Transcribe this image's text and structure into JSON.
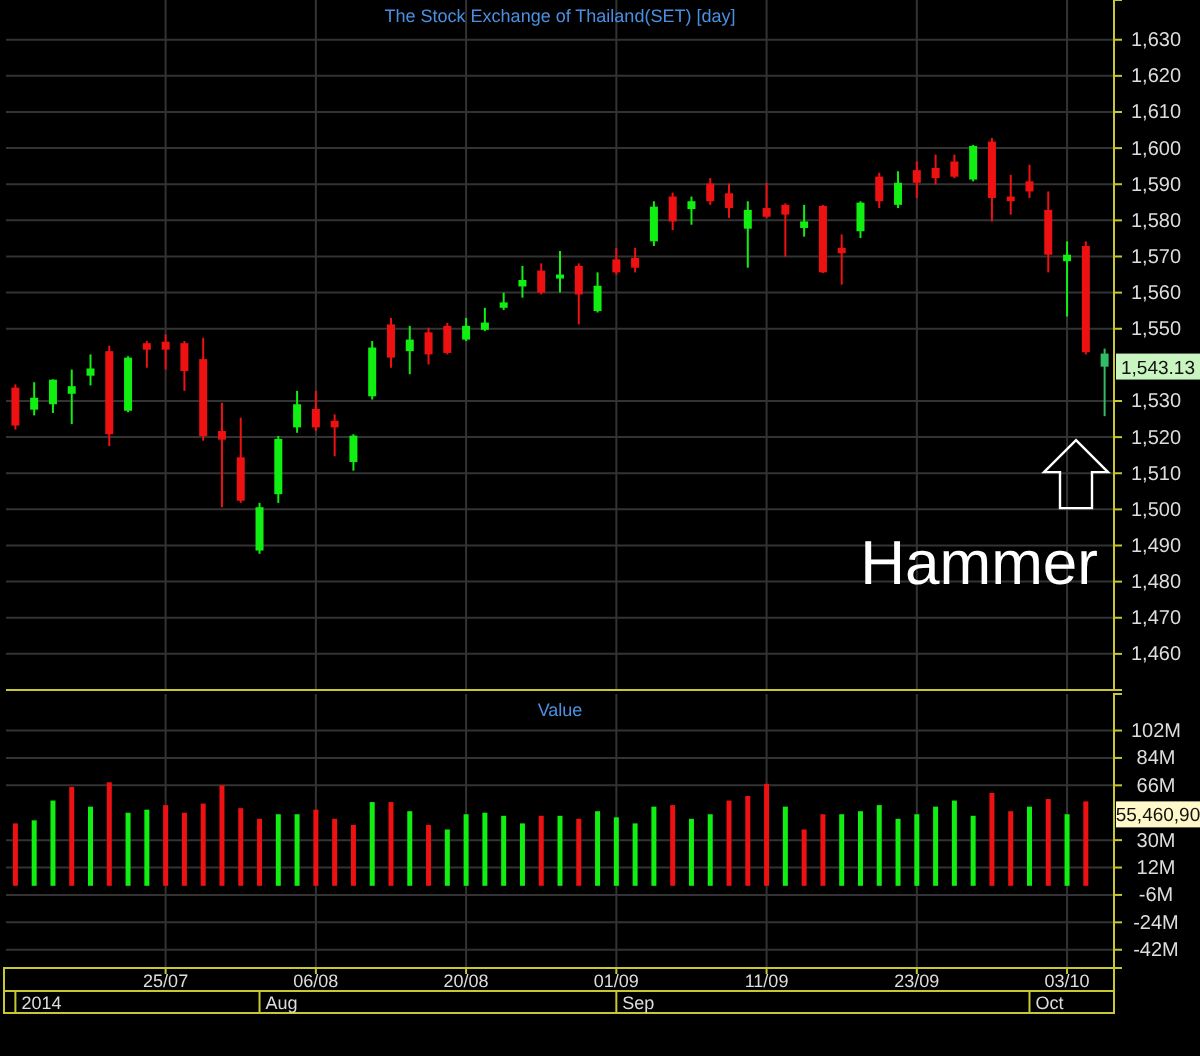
{
  "chart_data": [
    {
      "type": "candlestick",
      "title": "The Stock Exchange of Thailand(SET) [day]",
      "categories": [
        null,
        null,
        null,
        null,
        null,
        null,
        null,
        null,
        null,
        null,
        null,
        null,
        null,
        null,
        null,
        null,
        null,
        null,
        null,
        null,
        null,
        null,
        null,
        null,
        null,
        null,
        null,
        null,
        null,
        null,
        null,
        null,
        null,
        null,
        null,
        null,
        null,
        null,
        null,
        null,
        null,
        null,
        null,
        null,
        null,
        null,
        null,
        null,
        null,
        null,
        null,
        null,
        null,
        null,
        null,
        null,
        null,
        null,
        null
      ],
      "ohlc": [
        [
          1533.7,
          1534.6,
          1522.1,
          1523.2
        ],
        [
          1527.6,
          1535.2,
          1526.0,
          1530.9
        ],
        [
          1529.1,
          1536.0,
          1526.7,
          1535.9
        ],
        [
          1532.0,
          1538.7,
          1523.6,
          1534.1
        ],
        [
          1537.0,
          1542.9,
          1534.3,
          1539.0
        ],
        [
          1543.8,
          1545.3,
          1517.5,
          1520.8
        ],
        [
          1527.3,
          1542.4,
          1526.9,
          1542.0
        ],
        [
          1546.0,
          1546.6,
          1539.2,
          1544.2
        ],
        [
          1546.4,
          1548.4,
          1538.7,
          1544.2
        ],
        [
          1546.0,
          1546.6,
          1532.8,
          1538.3
        ],
        [
          1541.6,
          1547.5,
          1519.0,
          1520.3
        ],
        [
          1521.7,
          1529.5,
          1500.6,
          1519.3
        ],
        [
          1514.4,
          1525.4,
          1501.8,
          1502.4
        ],
        [
          1488.6,
          1501.8,
          1487.7,
          1500.6
        ],
        [
          1504.2,
          1520.3,
          1501.8,
          1519.5
        ],
        [
          1522.7,
          1532.8,
          1521.2,
          1529.1
        ],
        [
          1527.8,
          1532.8,
          1521.7,
          1522.7
        ],
        [
          1524.5,
          1526.3,
          1514.7,
          1522.7
        ],
        [
          1513.1,
          1520.8,
          1510.7,
          1520.4
        ],
        [
          1531.3,
          1546.6,
          1530.4,
          1544.8
        ],
        [
          1551.2,
          1553.0,
          1539.2,
          1542.0
        ],
        [
          1543.8,
          1550.8,
          1537.4,
          1547.0
        ],
        [
          1549.0,
          1550.3,
          1540.1,
          1542.9
        ],
        [
          1550.8,
          1551.6,
          1542.9,
          1543.3
        ],
        [
          1547.0,
          1553.0,
          1546.6,
          1550.8
        ],
        [
          1549.7,
          1555.8,
          1549.4,
          1551.7
        ],
        [
          1555.8,
          1560.0,
          1555.2,
          1557.3
        ],
        [
          1561.7,
          1567.4,
          1558.6,
          1563.5
        ],
        [
          1566.1,
          1568.1,
          1559.5,
          1560.0
        ],
        [
          1563.9,
          1571.5,
          1560.0,
          1565.0
        ],
        [
          1567.4,
          1568.1,
          1551.2,
          1559.5
        ],
        [
          1554.9,
          1565.6,
          1554.5,
          1561.9
        ],
        [
          1569.2,
          1572.4,
          1565.0,
          1565.6
        ],
        [
          1569.6,
          1572.4,
          1565.6,
          1566.9
        ],
        [
          1574.2,
          1585.3,
          1572.9,
          1583.8
        ],
        [
          1586.6,
          1587.7,
          1577.3,
          1579.7
        ],
        [
          1583.1,
          1586.6,
          1578.8,
          1585.3
        ],
        [
          1590.2,
          1591.7,
          1584.3,
          1585.3
        ],
        [
          1587.5,
          1590.2,
          1580.7,
          1583.4
        ],
        [
          1577.7,
          1585.3,
          1566.9,
          1582.9
        ],
        [
          1583.4,
          1590.4,
          1580.7,
          1581.0
        ],
        [
          1584.3,
          1584.7,
          1570.0,
          1581.6
        ],
        [
          1577.9,
          1584.3,
          1575.5,
          1579.7
        ],
        [
          1584.0,
          1584.3,
          1565.4,
          1565.6
        ],
        [
          1572.4,
          1576.1,
          1562.2,
          1570.9
        ],
        [
          1577.0,
          1585.3,
          1575.1,
          1584.9
        ],
        [
          1592.1,
          1593.2,
          1583.4,
          1585.3
        ],
        [
          1584.3,
          1593.6,
          1583.4,
          1590.4
        ],
        [
          1593.9,
          1596.3,
          1586.2,
          1590.4
        ],
        [
          1594.5,
          1598.2,
          1589.9,
          1591.7
        ],
        [
          1596.3,
          1598.2,
          1591.7,
          1592.1
        ],
        [
          1591.3,
          1600.9,
          1590.8,
          1600.6
        ],
        [
          1601.8,
          1602.8,
          1579.7,
          1586.2
        ],
        [
          1586.6,
          1592.6,
          1581.6,
          1585.3
        ],
        [
          1590.8,
          1595.4,
          1586.2,
          1588.0
        ],
        [
          1582.9,
          1588.0,
          1565.6,
          1570.5
        ],
        [
          1568.7,
          1574.2,
          1553.4,
          1570.5
        ],
        [
          1572.9,
          1574.2,
          1542.9,
          1543.5
        ],
        [
          1539.5,
          1544.5,
          1525.8,
          1543.13
        ]
      ],
      "colors": [
        "#ee1111",
        "#11ee11",
        "#11ee11",
        "#11ee11",
        "#11ee11",
        "#ee1111",
        "#11ee11",
        "#ee1111",
        "#ee1111",
        "#ee1111",
        "#ee1111",
        "#ee1111",
        "#ee1111",
        "#11ee11",
        "#11ee11",
        "#11ee11",
        "#ee1111",
        "#ee1111",
        "#11ee11",
        "#11ee11",
        "#ee1111",
        "#11ee11",
        "#ee1111",
        "#ee1111",
        "#11ee11",
        "#11ee11",
        "#11ee11",
        "#11ee11",
        "#ee1111",
        "#11ee11",
        "#ee1111",
        "#11ee11",
        "#ee1111",
        "#ee1111",
        "#11ee11",
        "#ee1111",
        "#11ee11",
        "#ee1111",
        "#ee1111",
        "#11ee11",
        "#ee1111",
        "#ee1111",
        "#11ee11",
        "#ee1111",
        "#ee1111",
        "#11ee11",
        "#ee1111",
        "#11ee11",
        "#ee1111",
        "#ee1111",
        "#ee1111",
        "#11ee11",
        "#ee1111",
        "#ee1111",
        "#ee1111",
        "#ee1111",
        "#11ee11",
        "#ee1111",
        "#33bb66"
      ],
      "ylim": [
        1450,
        1641
      ],
      "yticks": [
        {
          "value": 1460,
          "label": "1,460"
        },
        {
          "value": 1470,
          "label": "1,470"
        },
        {
          "value": 1480,
          "label": "1,480"
        },
        {
          "value": 1490,
          "label": "1,490"
        },
        {
          "value": 1500,
          "label": "1,500"
        },
        {
          "value": 1510,
          "label": "1,510"
        },
        {
          "value": 1520,
          "label": "1,520"
        },
        {
          "value": 1530,
          "label": "1,530"
        },
        {
          "value": 1550,
          "label": "1,550"
        },
        {
          "value": 1560,
          "label": "1,560"
        },
        {
          "value": 1570,
          "label": "1,570"
        },
        {
          "value": 1580,
          "label": "1,580"
        },
        {
          "value": 1590,
          "label": "1,590"
        },
        {
          "value": 1600,
          "label": "1,600"
        },
        {
          "value": 1610,
          "label": "1,610"
        },
        {
          "value": 1620,
          "label": "1,620"
        },
        {
          "value": 1630,
          "label": "1,630"
        }
      ],
      "tick_labels": "y",
      "grid": true,
      "annotations": [
        "1,543.13",
        "Hammer"
      ]
    },
    {
      "type": "bar",
      "title": "Value",
      "categories": [
        null,
        null,
        null,
        null,
        null,
        null,
        null,
        null,
        "25/07",
        null,
        null,
        null,
        null,
        null,
        null,
        null,
        "06/08",
        null,
        null,
        null,
        null,
        null,
        null,
        null,
        "20/08",
        null,
        null,
        null,
        null,
        null,
        null,
        null,
        "01/09",
        null,
        null,
        null,
        null,
        null,
        null,
        null,
        "11/09",
        null,
        null,
        null,
        null,
        null,
        null,
        null,
        "23/09",
        null,
        null,
        null,
        null,
        null,
        null,
        null,
        "03/10",
        null,
        null
      ],
      "values": [
        41000000,
        43000000,
        56000000,
        65000000,
        52000000,
        68000000,
        48000000,
        50000000,
        53000000,
        48000000,
        54000000,
        66000000,
        51000000,
        44000000,
        47000000,
        47000000,
        50000000,
        44000000,
        40000000,
        55000000,
        55000000,
        49000000,
        40000000,
        37000000,
        47000000,
        48000000,
        46000000,
        41000000,
        46000000,
        46000000,
        44000000,
        49000000,
        45000000,
        41000000,
        52000000,
        53000000,
        44000000,
        47000000,
        56000000,
        59000000,
        67000000,
        52000000,
        37000000,
        47000000,
        47000000,
        49000000,
        53000000,
        44000000,
        47000000,
        52000000,
        56000000,
        46000000,
        61000000,
        49000000,
        52000000,
        57000000,
        47000000,
        55460900,
        null
      ],
      "colors": [
        "#ee1111",
        "#11ee11",
        "#11ee11",
        "#ee1111",
        "#11ee11",
        "#ee1111",
        "#11ee11",
        "#11ee11",
        "#ee1111",
        "#ee1111",
        "#ee1111",
        "#ee1111",
        "#ee1111",
        "#ee1111",
        "#11ee11",
        "#11ee11",
        "#ee1111",
        "#ee1111",
        "#ee1111",
        "#11ee11",
        "#ee1111",
        "#11ee11",
        "#ee1111",
        "#11ee11",
        "#11ee11",
        "#11ee11",
        "#11ee11",
        "#11ee11",
        "#ee1111",
        "#11ee11",
        "#ee1111",
        "#11ee11",
        "#11ee11",
        "#11ee11",
        "#11ee11",
        "#ee1111",
        "#11ee11",
        "#11ee11",
        "#ee1111",
        "#ee1111",
        "#ee1111",
        "#11ee11",
        "#ee1111",
        "#ee1111",
        "#11ee11",
        "#11ee11",
        "#11ee11",
        "#11ee11",
        "#11ee11",
        "#11ee11",
        "#11ee11",
        "#11ee11",
        "#ee1111",
        "#ee1111",
        "#11ee11",
        "#ee1111",
        "#11ee11",
        "#ee1111",
        null
      ],
      "ylim": [
        -54000000,
        126000000
      ],
      "yticks": [
        {
          "value": -42000000,
          "label": "-42M"
        },
        {
          "value": -24000000,
          "label": "-24M"
        },
        {
          "value": -6000000,
          "label": "-6M"
        },
        {
          "value": 12000000,
          "label": "12M"
        },
        {
          "value": 30000000,
          "label": "30M"
        },
        {
          "value": 66000000,
          "label": "66M"
        },
        {
          "value": 84000000,
          "label": "84M"
        },
        {
          "value": 102000000,
          "label": "102M"
        }
      ],
      "grid": true,
      "annotations": [
        "55,460,90",
        "2014",
        "Aug",
        "Sep",
        "Oct"
      ]
    }
  ]
}
